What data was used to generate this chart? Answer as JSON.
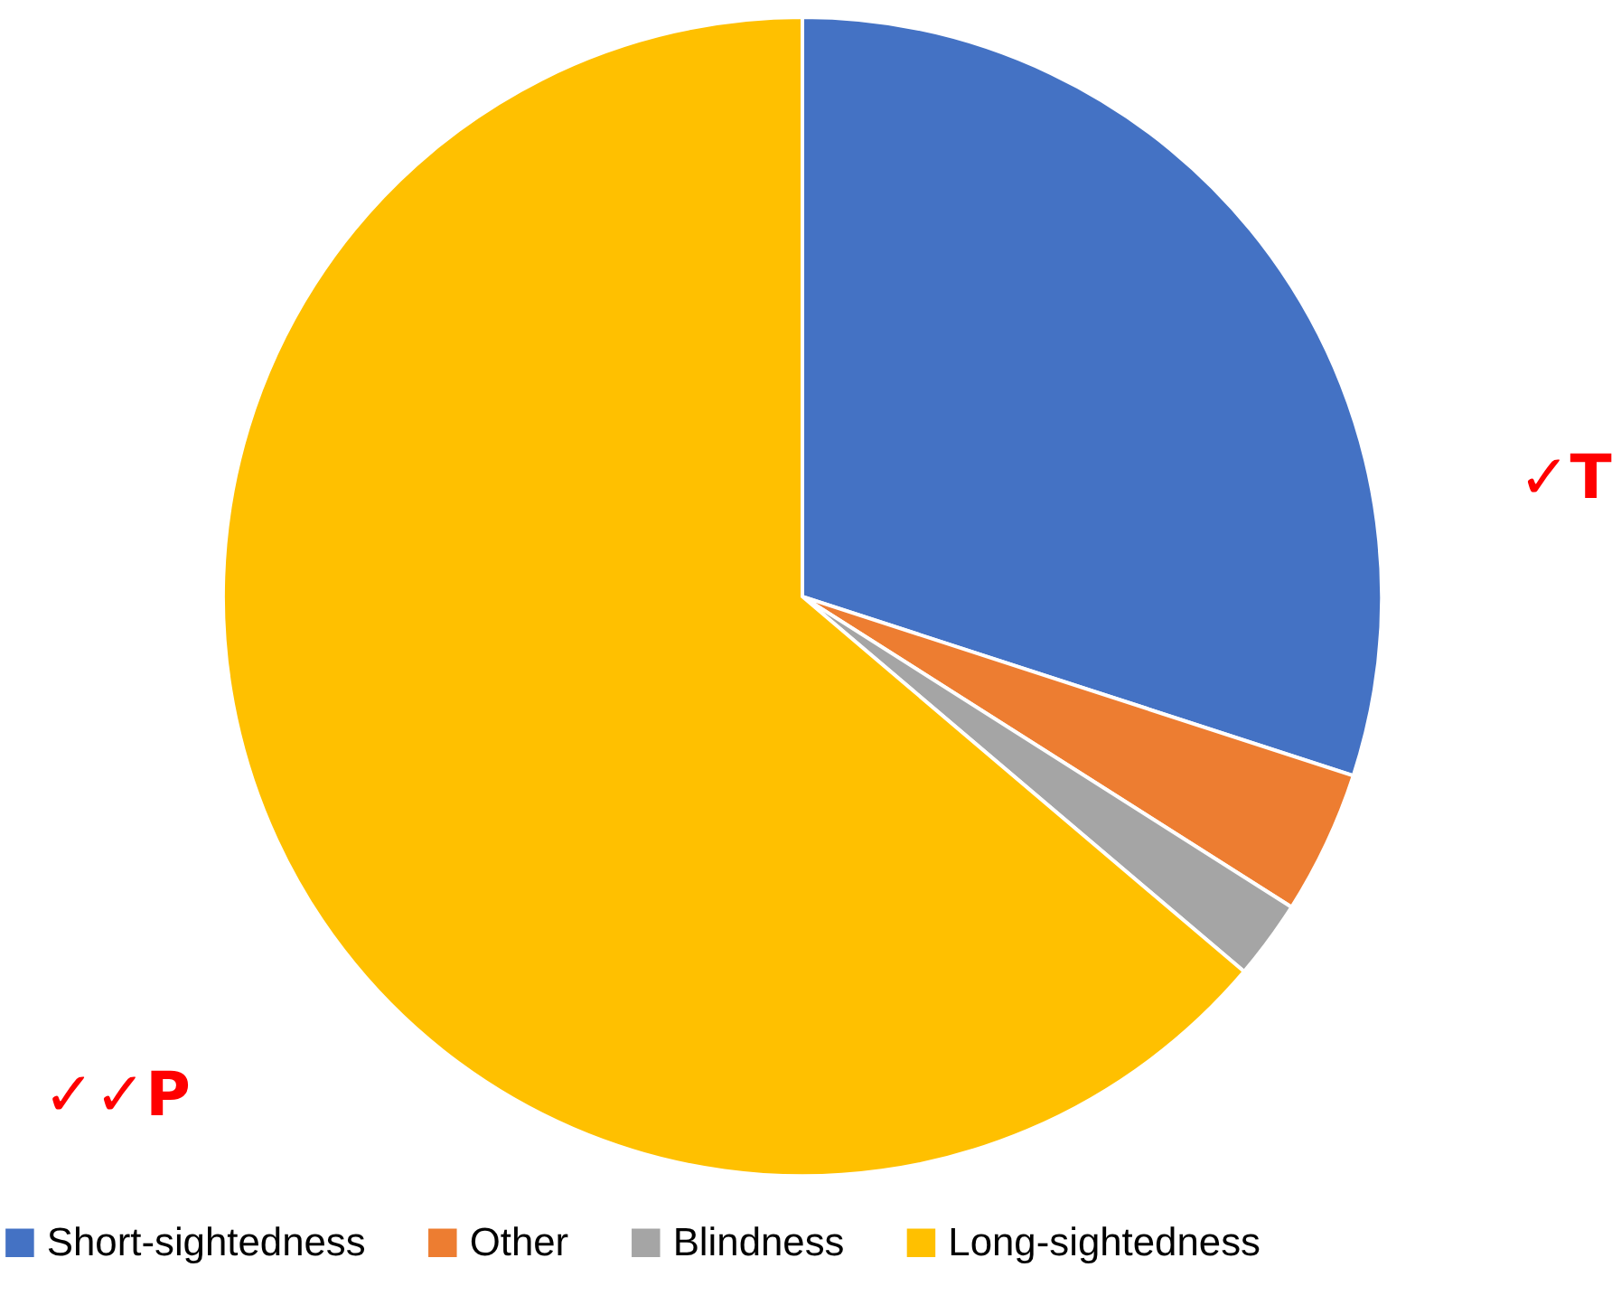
{
  "chart_data": {
    "type": "pie",
    "categories": [
      "Short-sightedness",
      "Other",
      "Blindness",
      "Long-sightedness"
    ],
    "values": [
      30,
      4,
      2.2,
      63.8
    ],
    "colors": [
      "#4472c4",
      "#ed7d31",
      "#a5a5a5",
      "#ffc000"
    ],
    "legend": "bottom",
    "annotations": [
      "✓T",
      "✓✓P"
    ]
  }
}
